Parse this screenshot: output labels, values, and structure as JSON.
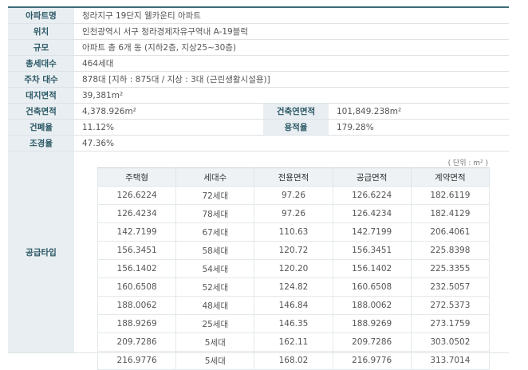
{
  "info": {
    "rows": [
      [
        "아파트명",
        "청라지구 19단지 웰카운티 아파트"
      ],
      [
        "위치",
        "인천광역시 서구 청라경제자유구역내 A-19블럭"
      ],
      [
        "규모",
        "아파트 총 6개 동 (지하2층, 지상25~30층)"
      ],
      [
        "총세대수",
        "464세대"
      ],
      [
        "주차 대수",
        "878대 [지하 : 875대 / 지상 : 3대 (근린생활시설용)]"
      ],
      [
        "대지면적",
        "39,381m²"
      ],
      [
        "건축면적",
        "4,378.926m²",
        "건축연면적",
        "101,849.238m²"
      ],
      [
        "건폐율",
        "11.12%",
        "용적율",
        "179.28%"
      ],
      [
        "조경율",
        "47.36%"
      ]
    ],
    "supply_label": "공급타입",
    "unit": "( 단위 : m² )"
  },
  "table": {
    "header": [
      "주택형",
      "세대수",
      "전용면적",
      "공급면적",
      "계약면적"
    ],
    "rows": [
      [
        "126.6224",
        "72세대",
        "97.26",
        "126.6224",
        "182.6119"
      ],
      [
        "126.4234",
        "78세대",
        "97.26",
        "126.4234",
        "182.4129"
      ],
      [
        "142.7199",
        "67세대",
        "110.63",
        "142.7199",
        "206.4061"
      ],
      [
        "156.3451",
        "58세대",
        "120.72",
        "156.3451",
        "225.8398"
      ],
      [
        "156.1402",
        "54세대",
        "120.20",
        "156.1402",
        "225.3355"
      ],
      [
        "160.6508",
        "52세대",
        "124.82",
        "160.6508",
        "232.5057"
      ],
      [
        "188.0062",
        "48세대",
        "146.84",
        "188.0062",
        "272.5373"
      ],
      [
        "188.9269",
        "25세대",
        "146.35",
        "188.9269",
        "273.1759"
      ],
      [
        "209.7286",
        "5세대",
        "162.11",
        "209.7286",
        "303.0502"
      ],
      [
        "216.9776",
        "5세대",
        "168.02",
        "216.9776",
        "313.7014"
      ]
    ]
  }
}
